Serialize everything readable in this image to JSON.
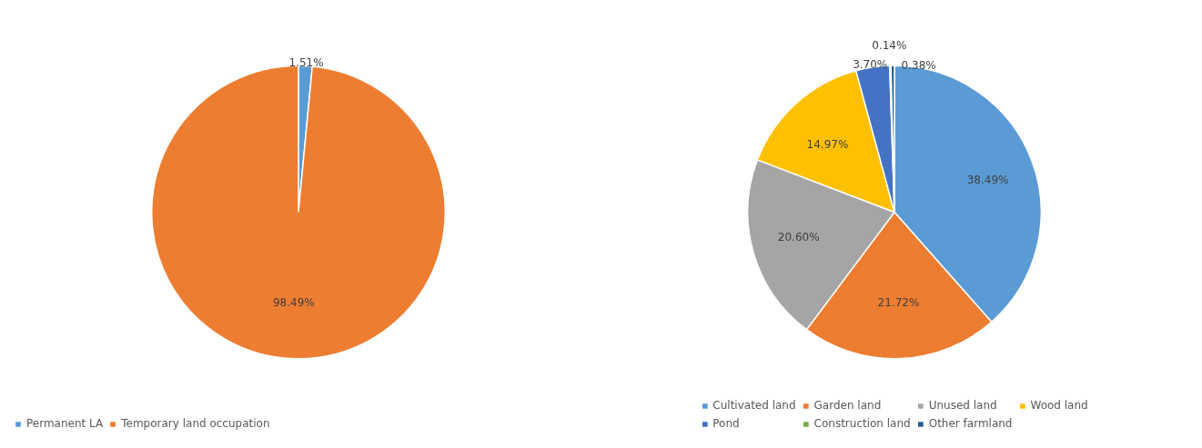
{
  "chart_data": [
    {
      "type": "pie",
      "categories": [
        "Permanent LA",
        "Temporary land occupation"
      ],
      "values": [
        1.51,
        98.49
      ],
      "colors": [
        "#5b9bd5",
        "#ed7d31"
      ],
      "value_labels": [
        "1.51%",
        "98.49%"
      ],
      "legend": "bottom left"
    },
    {
      "type": "pie",
      "categories": [
        "Cultivated land",
        "Garden land",
        "Unused land",
        "Wood land",
        "Pond",
        "Construction land",
        "Other farmland"
      ],
      "values": [
        38.49,
        21.72,
        20.6,
        14.97,
        3.7,
        0.14,
        0.38
      ],
      "colors": [
        "#5b9bd5",
        "#ed7d31",
        "#a5a5a5",
        "#ffc000",
        "#4472c4",
        "#70ad47",
        "#255e91"
      ],
      "value_labels": [
        "38.49%",
        "21.72%",
        "20.60%",
        "14.97%",
        "3.70%",
        "0.14%",
        "0.38%"
      ],
      "legend": "bottom"
    }
  ]
}
